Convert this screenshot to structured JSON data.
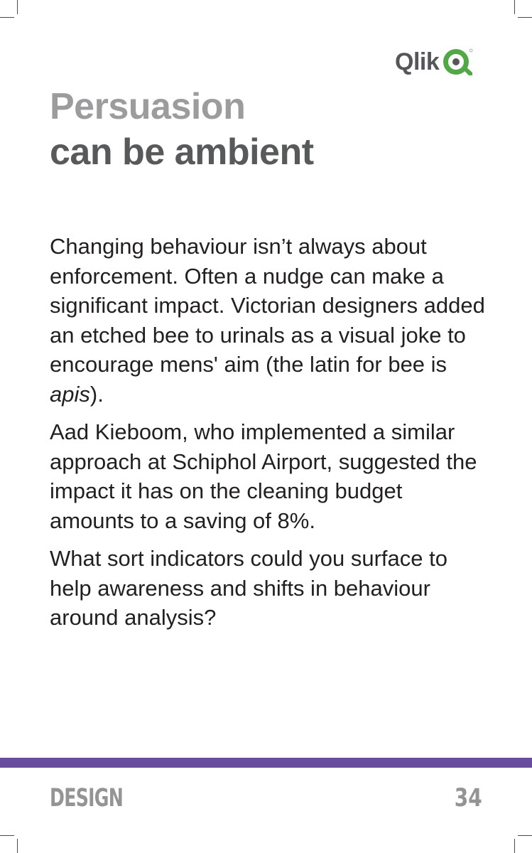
{
  "brand": {
    "logo_text": "Qlik",
    "mark_color": "#52a846"
  },
  "header": {
    "title_line1": "Persuasion",
    "title_line2": "can be ambient"
  },
  "content": {
    "p1": "Changing behaviour isn’t always about enforcement. Often a nudge can make a significant impact. Victorian designers added an etched bee to urinals as a visual joke to encourage mens' aim (the latin for bee is ",
    "p1_emphasis": "apis",
    "p1_end": ").",
    "p2": "Aad Kieboom, who implemented a similar approach at Schiphol Airport, suggested the impact it has on the cleaning budget amounts to a saving of 8%.",
    "p3": "What sort indicators could you surface to help awareness and shifts in behaviour around analysis?"
  },
  "footer": {
    "section": "DESIGN",
    "page": "34",
    "accent_color": "#6a4c9c"
  }
}
